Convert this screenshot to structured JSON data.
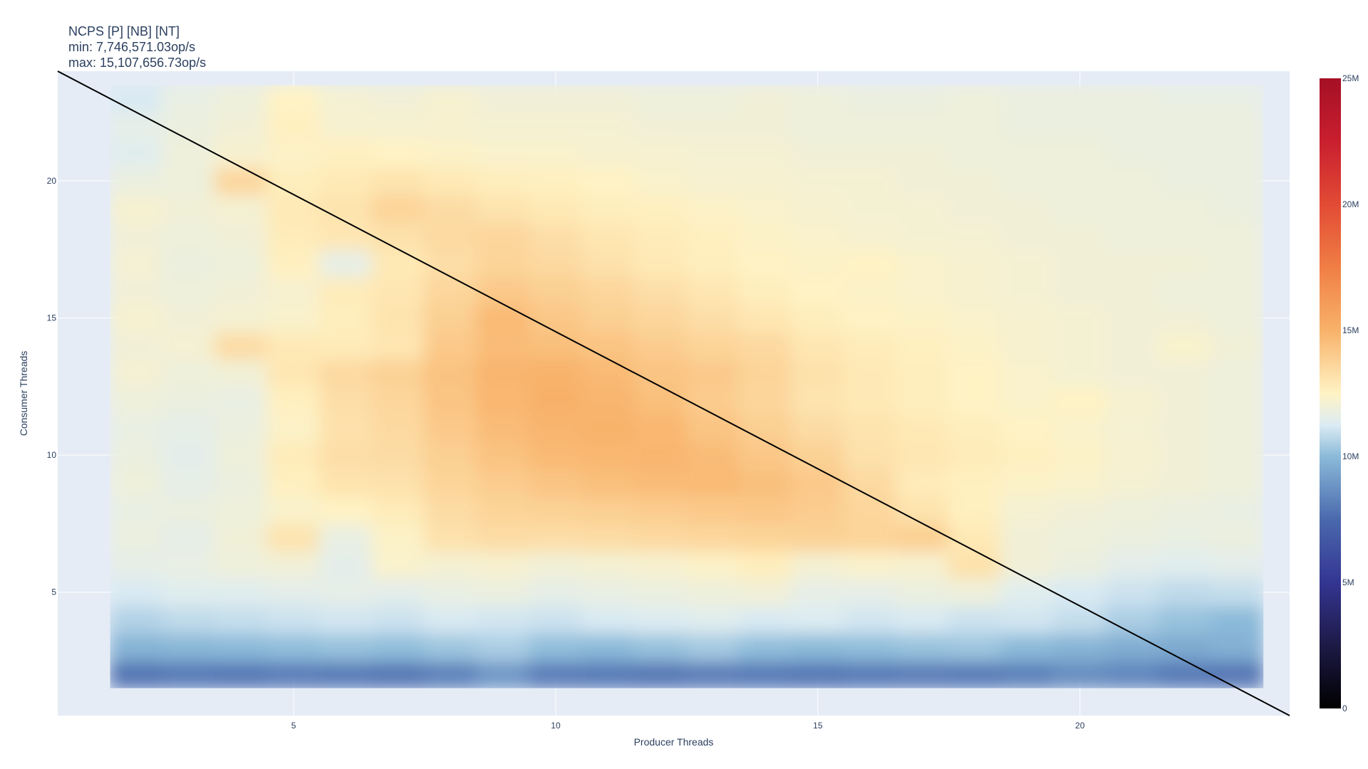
{
  "chart_data": {
    "type": "heatmap",
    "title_lines": [
      "NCPS [P] [NB] [NT]",
      "min: 7,746,571.03op/s",
      "max: 15,107,656.73op/s"
    ],
    "xlabel": "Producer Threads",
    "ylabel": "Consumer Threads",
    "xlim": [
      0.5,
      24
    ],
    "ylim": [
      0.5,
      24
    ],
    "x_ticks": [
      5,
      10,
      15,
      20
    ],
    "y_ticks": [
      5,
      10,
      15,
      20
    ],
    "x_values": [
      2,
      3,
      4,
      5,
      6,
      7,
      8,
      9,
      10,
      11,
      12,
      13,
      14,
      15,
      16,
      17,
      18,
      19,
      20,
      21,
      22,
      23
    ],
    "y_values": [
      2,
      3,
      4,
      5,
      6,
      7,
      8,
      9,
      10,
      11,
      12,
      13,
      14,
      15,
      16,
      17,
      18,
      19,
      20,
      21,
      22,
      23
    ],
    "z_unit": "op/s",
    "z_rows_millions": [
      [
        7.8,
        8.0,
        7.9,
        8.1,
        8.0,
        7.9,
        8.2,
        8.9,
        8.1,
        8.0,
        7.9,
        8.1,
        8.0,
        7.9,
        8.0,
        8.1,
        8.0,
        8.2,
        8.6,
        8.4,
        8.0,
        7.9
      ],
      [
        9.8,
        9.9,
        10.0,
        10.1,
        10.2,
        10.1,
        10.3,
        10.5,
        10.1,
        10.0,
        10.2,
        10.4,
        10.1,
        10.0,
        10.1,
        10.2,
        10.3,
        10.0,
        9.8,
        9.6,
        9.5,
        9.7
      ],
      [
        10.6,
        10.8,
        10.9,
        11.0,
        11.1,
        11.0,
        11.2,
        11.1,
        11.0,
        11.2,
        11.3,
        11.4,
        11.2,
        11.3,
        11.1,
        11.2,
        11.0,
        11.1,
        10.9,
        10.5,
        10.2,
        10.0
      ],
      [
        11.2,
        11.4,
        11.4,
        11.5,
        11.6,
        11.5,
        11.7,
        11.8,
        11.6,
        11.7,
        11.8,
        11.9,
        12.0,
        11.6,
        11.6,
        11.8,
        11.9,
        11.4,
        11.2,
        11.0,
        10.8,
        10.9
      ],
      [
        11.6,
        11.7,
        11.9,
        12.0,
        11.5,
        12.3,
        12.1,
        12.2,
        12.0,
        12.1,
        12.2,
        12.4,
        12.7,
        12.1,
        12.3,
        12.2,
        13.2,
        12.0,
        11.8,
        11.5,
        11.4,
        11.5
      ],
      [
        11.8,
        11.6,
        12.0,
        13.1,
        11.7,
        12.4,
        13.2,
        13.4,
        13.3,
        13.4,
        13.5,
        13.6,
        13.7,
        13.8,
        13.7,
        13.9,
        12.9,
        12.0,
        11.9,
        11.8,
        11.7,
        11.8
      ],
      [
        11.7,
        11.8,
        11.9,
        12.3,
        12.5,
        12.8,
        13.4,
        13.7,
        13.8,
        13.9,
        14.0,
        14.1,
        14.2,
        14.0,
        13.6,
        13.1,
        12.6,
        12.1,
        12.0,
        11.9,
        11.8,
        11.7
      ],
      [
        11.9,
        11.6,
        11.8,
        12.6,
        13.1,
        13.2,
        13.7,
        14.0,
        14.3,
        14.5,
        14.6,
        14.7,
        14.5,
        14.1,
        13.5,
        12.8,
        12.6,
        12.4,
        12.3,
        12.1,
        12.0,
        11.9
      ],
      [
        11.8,
        11.5,
        11.9,
        12.8,
        13.3,
        13.4,
        13.9,
        14.4,
        14.7,
        14.8,
        14.9,
        14.6,
        14.2,
        13.8,
        13.2,
        13.0,
        12.8,
        12.6,
        12.4,
        12.2,
        12.0,
        11.9
      ],
      [
        11.7,
        11.6,
        11.8,
        12.4,
        13.2,
        13.5,
        14.1,
        14.6,
        14.9,
        15.0,
        14.8,
        14.3,
        13.9,
        13.4,
        13.1,
        12.9,
        12.7,
        12.5,
        12.3,
        12.1,
        12.0,
        11.9
      ],
      [
        11.9,
        11.8,
        11.7,
        12.6,
        13.3,
        13.6,
        14.3,
        14.8,
        15.1,
        14.9,
        14.5,
        14.0,
        13.6,
        13.1,
        12.9,
        12.7,
        12.5,
        12.3,
        12.5,
        12.2,
        12.0,
        11.9
      ],
      [
        12.1,
        11.9,
        12.0,
        13.0,
        13.5,
        13.8,
        14.4,
        14.9,
        15.0,
        14.7,
        14.3,
        14.1,
        13.7,
        13.2,
        12.9,
        12.7,
        12.5,
        12.3,
        12.1,
        12.0,
        12.0,
        11.9
      ],
      [
        12.0,
        12.1,
        13.4,
        12.9,
        12.8,
        13.0,
        14.1,
        14.6,
        14.5,
        14.3,
        14.0,
        13.7,
        13.5,
        13.0,
        12.8,
        12.6,
        12.4,
        12.2,
        12.1,
        12.0,
        12.3,
        12.0
      ],
      [
        12.2,
        12.0,
        12.1,
        12.3,
        12.7,
        13.1,
        13.9,
        14.7,
        14.2,
        13.9,
        13.6,
        13.3,
        13.0,
        12.7,
        12.5,
        12.4,
        12.3,
        12.2,
        12.1,
        12.0,
        12.0,
        11.9
      ],
      [
        12.0,
        11.9,
        12.0,
        12.2,
        12.8,
        13.0,
        13.6,
        14.1,
        13.9,
        13.6,
        13.3,
        13.0,
        12.7,
        12.5,
        12.4,
        12.3,
        12.2,
        12.1,
        12.0,
        12.0,
        11.9,
        11.9
      ],
      [
        12.1,
        11.8,
        11.9,
        12.6,
        11.6,
        12.9,
        13.3,
        13.7,
        13.5,
        13.2,
        12.9,
        12.7,
        12.5,
        12.4,
        12.5,
        12.3,
        12.2,
        12.1,
        12.0,
        12.0,
        12.0,
        11.9
      ],
      [
        12.0,
        11.9,
        12.0,
        12.8,
        13.0,
        13.2,
        13.5,
        13.6,
        13.3,
        13.0,
        12.8,
        12.6,
        12.4,
        12.3,
        12.2,
        12.1,
        12.1,
        12.0,
        12.0,
        11.9,
        11.9,
        11.9
      ],
      [
        12.2,
        12.0,
        12.1,
        12.9,
        13.1,
        13.7,
        13.4,
        13.1,
        12.9,
        12.7,
        12.6,
        12.4,
        12.3,
        12.2,
        12.1,
        12.1,
        12.0,
        12.0,
        11.9,
        11.9,
        11.9,
        11.8
      ],
      [
        11.8,
        11.9,
        13.6,
        12.7,
        12.9,
        13.1,
        12.9,
        12.7,
        12.6,
        12.5,
        12.3,
        12.2,
        12.2,
        12.1,
        12.1,
        12.0,
        12.0,
        11.9,
        11.9,
        11.9,
        11.8,
        11.8
      ],
      [
        11.4,
        11.9,
        12.2,
        12.4,
        12.6,
        12.5,
        12.4,
        12.3,
        12.3,
        12.2,
        12.2,
        12.1,
        12.1,
        12.0,
        12.0,
        12.0,
        11.9,
        11.9,
        11.9,
        11.8,
        11.8,
        11.8
      ],
      [
        11.6,
        11.8,
        12.0,
        12.6,
        12.2,
        12.2,
        12.2,
        12.1,
        12.1,
        12.1,
        12.0,
        12.0,
        12.0,
        11.9,
        11.9,
        11.9,
        11.9,
        11.8,
        11.8,
        11.8,
        11.8,
        11.8
      ],
      [
        11.2,
        11.7,
        11.9,
        12.5,
        12.1,
        12.0,
        12.2,
        12.0,
        12.0,
        12.0,
        11.9,
        11.9,
        12.0,
        11.9,
        11.8,
        11.8,
        11.9,
        11.8,
        11.8,
        11.8,
        11.7,
        11.7
      ]
    ],
    "diagonal_line": {
      "x": [
        0.5,
        24
      ],
      "y": [
        24,
        0.5
      ],
      "color": "#000000"
    },
    "colorscale": [
      [
        0.0,
        "#000000"
      ],
      [
        0.1,
        "#1d1a46"
      ],
      [
        0.2,
        "#343592"
      ],
      [
        0.3,
        "#4a69ad"
      ],
      [
        0.4,
        "#8bbad9"
      ],
      [
        0.45,
        "#dcecf4"
      ],
      [
        0.5,
        "#fff3c4"
      ],
      [
        0.6,
        "#f8b26a"
      ],
      [
        0.7,
        "#f07e45"
      ],
      [
        0.8,
        "#e24b35"
      ],
      [
        0.9,
        "#c91f2f"
      ],
      [
        1.0,
        "#a50f25"
      ]
    ],
    "colorbar": {
      "range": [
        0,
        25
      ],
      "ticks": [
        0,
        5,
        10,
        15,
        20,
        25
      ],
      "tick_labels": [
        "0",
        "5M",
        "10M",
        "15M",
        "20M",
        "25M"
      ]
    }
  },
  "colors": {
    "plot_background": "#e5ecf6",
    "text": "#2a3f5f"
  }
}
